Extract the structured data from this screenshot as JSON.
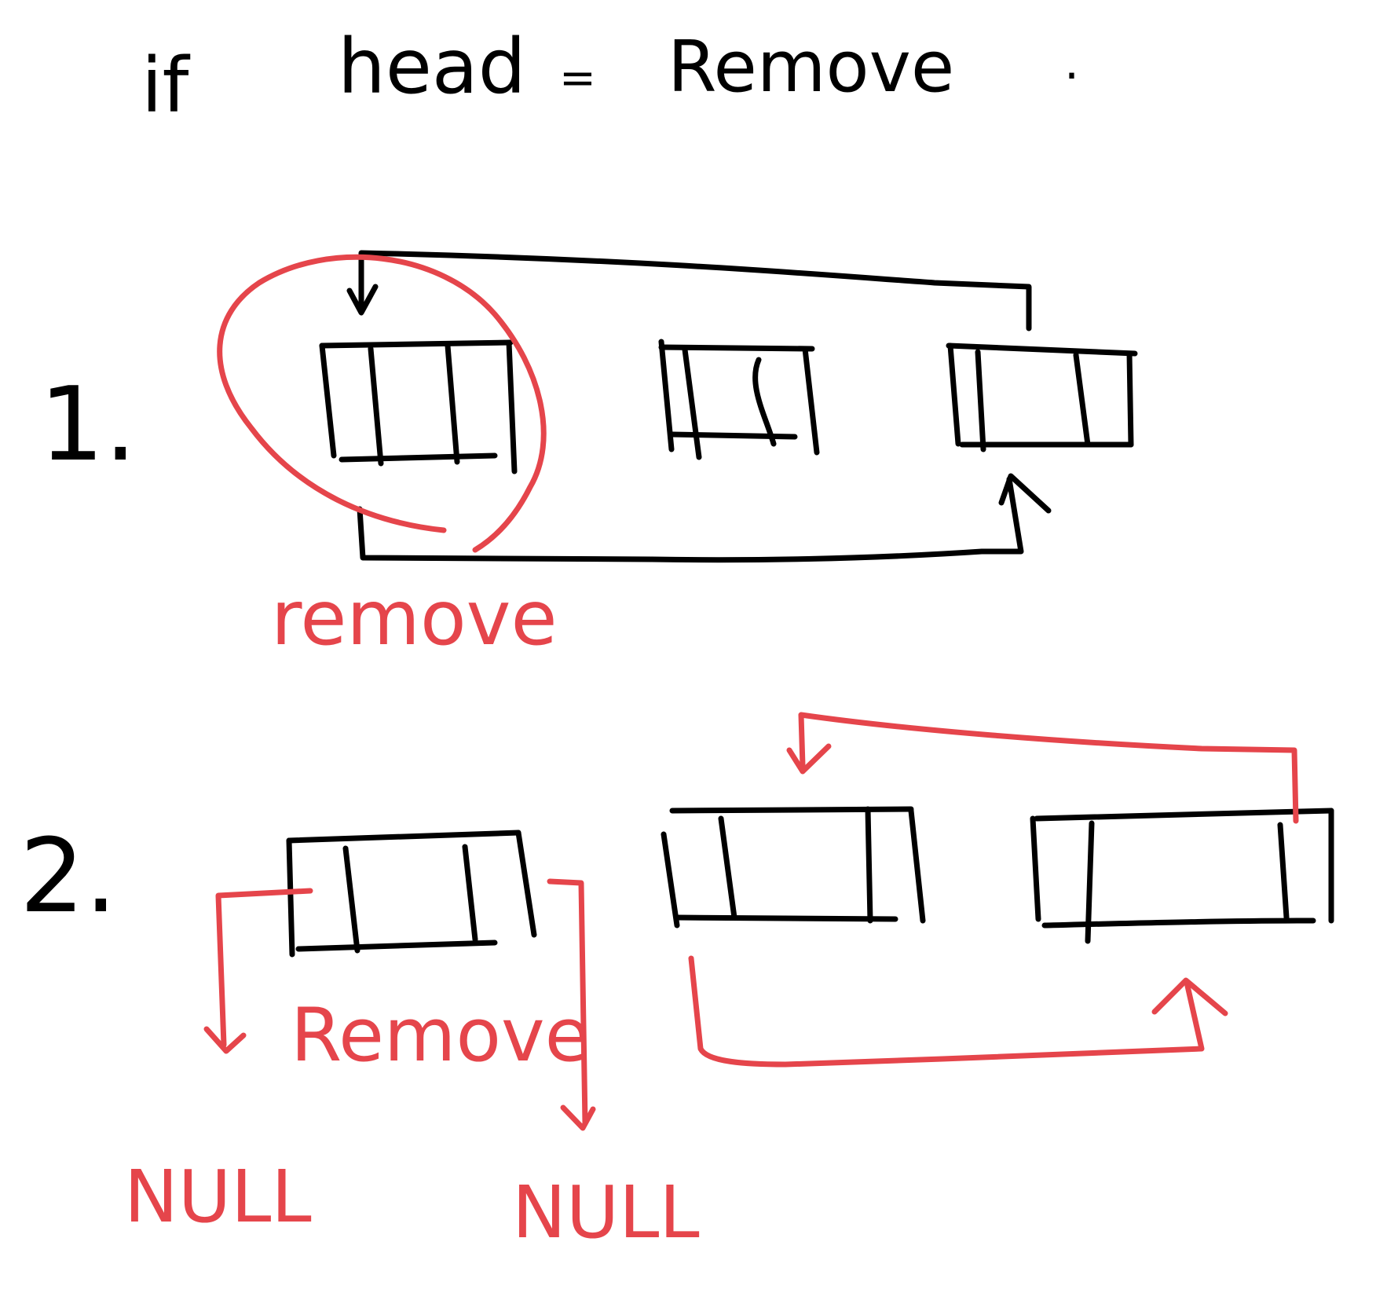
{
  "title": {
    "condition_keyword": "if",
    "subject": "head",
    "operator": "=",
    "value": "Remove",
    "trailing_mark": "."
  },
  "step1": {
    "number_label": "1.",
    "annotation": "remove"
  },
  "step2": {
    "number_label": "2.",
    "annotation": "Remove",
    "prev_pointer_label": "NULL",
    "next_pointer_label": "NULL"
  },
  "colors": {
    "ink": "#000000",
    "annotation": "#e5454b",
    "background": "#ffffff"
  }
}
